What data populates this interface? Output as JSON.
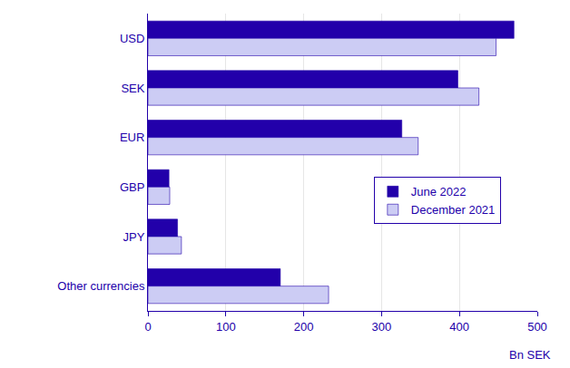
{
  "chart_data": {
    "type": "bar",
    "orientation": "horizontal",
    "x_label": "Bn SEK",
    "categories": [
      "USD",
      "SEK",
      "EUR",
      "GBP",
      "JPY",
      "Other currencies"
    ],
    "series": [
      {
        "name": "June 2022",
        "color": "#2200aa",
        "values": [
          470,
          398,
          326,
          27,
          38,
          170
        ]
      },
      {
        "name": "December 2021",
        "color": "#ccccf4",
        "values": [
          447,
          425,
          347,
          28,
          43,
          232
        ]
      }
    ],
    "xlim": [
      0,
      500
    ],
    "xticks": [
      0,
      100,
      200,
      300,
      400,
      500
    ],
    "grid": true,
    "legend": "right"
  }
}
